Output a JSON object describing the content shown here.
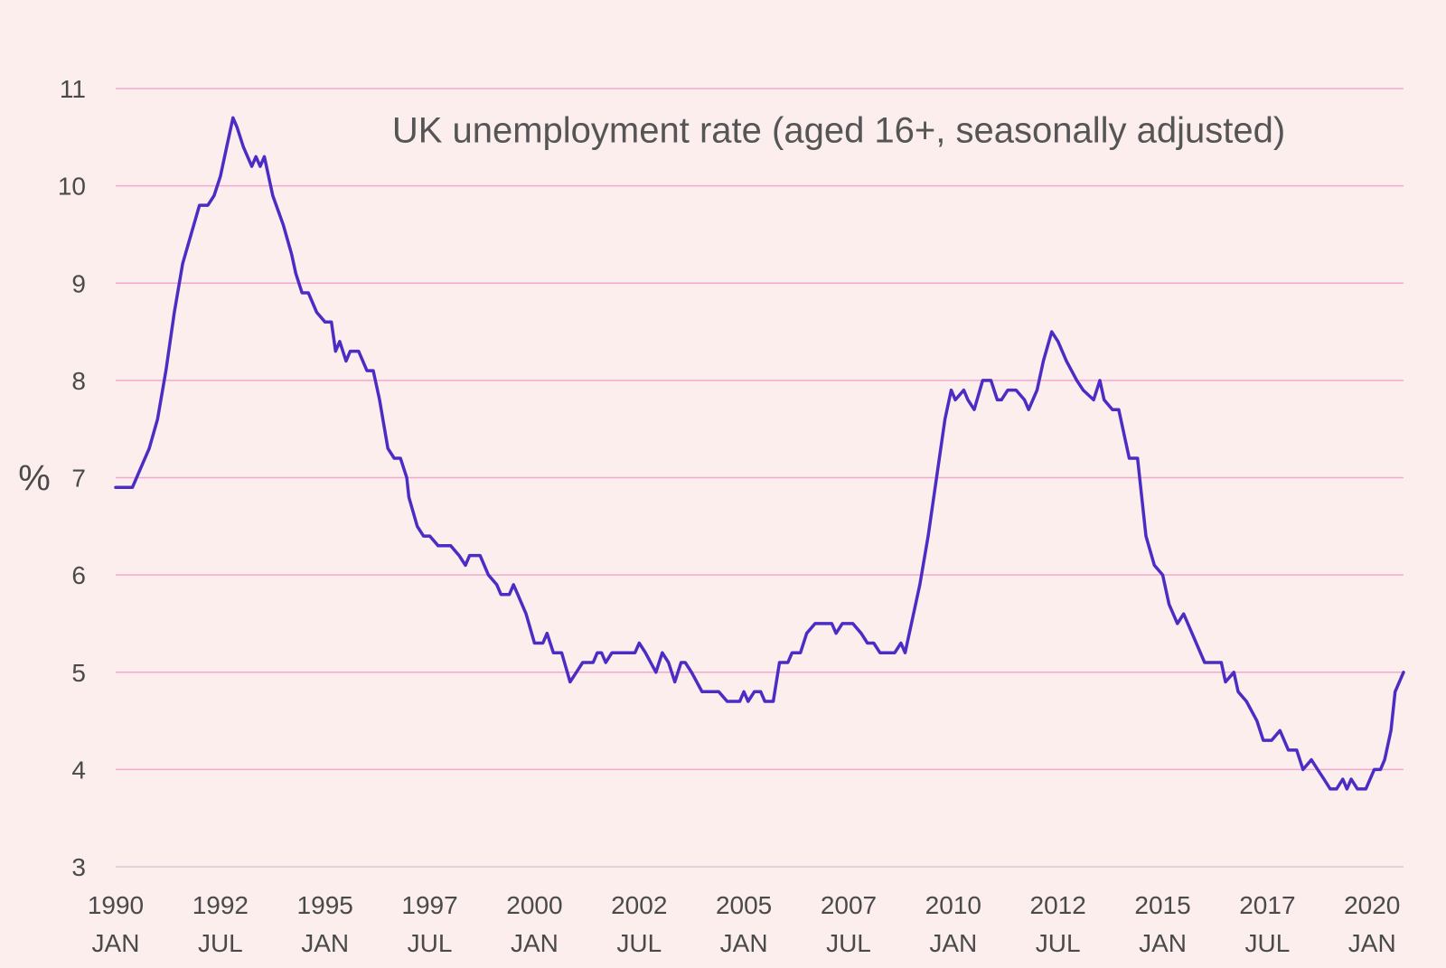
{
  "chart_data": {
    "type": "line",
    "title": "UK unemployment rate (aged 16+, seasonally adjusted)",
    "xlabel": "",
    "ylabel": "%",
    "ylim": [
      3,
      11
    ],
    "yticks": [
      "3",
      "4",
      "5",
      "6",
      "7",
      "8",
      "9",
      "10",
      "11"
    ],
    "grid": true,
    "legend": "none",
    "xlim": [
      1990.0,
      2020.75
    ],
    "xtick_labels": [
      {
        "year": "1990",
        "month": "JAN",
        "x": 1990.0
      },
      {
        "year": "1992",
        "month": "JUL",
        "x": 1992.5
      },
      {
        "year": "1995",
        "month": "JAN",
        "x": 1995.0
      },
      {
        "year": "1997",
        "month": "JUL",
        "x": 1997.5
      },
      {
        "year": "2000",
        "month": "JAN",
        "x": 2000.0
      },
      {
        "year": "2002",
        "month": "JUL",
        "x": 2002.5
      },
      {
        "year": "2005",
        "month": "JAN",
        "x": 2005.0
      },
      {
        "year": "2007",
        "month": "JUL",
        "x": 2007.5
      },
      {
        "year": "2010",
        "month": "JAN",
        "x": 2010.0
      },
      {
        "year": "2012",
        "month": "JUL",
        "x": 2012.5
      },
      {
        "year": "2015",
        "month": "JAN",
        "x": 2015.0
      },
      {
        "year": "2017",
        "month": "JUL",
        "x": 2017.5
      },
      {
        "year": "2020",
        "month": "JAN",
        "x": 2020.0
      }
    ],
    "series": [
      {
        "name": "UK unemployment rate",
        "color": "#4B2CC4",
        "points": [
          [
            1990.0,
            6.9
          ],
          [
            1990.4,
            6.9
          ],
          [
            1990.6,
            7.1
          ],
          [
            1990.8,
            7.3
          ],
          [
            1991.0,
            7.6
          ],
          [
            1991.2,
            8.1
          ],
          [
            1991.4,
            8.7
          ],
          [
            1991.6,
            9.2
          ],
          [
            1991.8,
            9.5
          ],
          [
            1992.0,
            9.8
          ],
          [
            1992.2,
            9.8
          ],
          [
            1992.35,
            9.9
          ],
          [
            1992.5,
            10.1
          ],
          [
            1992.65,
            10.4
          ],
          [
            1992.8,
            10.7
          ],
          [
            1992.9,
            10.6
          ],
          [
            1993.05,
            10.4
          ],
          [
            1993.25,
            10.2
          ],
          [
            1993.35,
            10.3
          ],
          [
            1993.45,
            10.2
          ],
          [
            1993.55,
            10.3
          ],
          [
            1993.75,
            9.9
          ],
          [
            1994.0,
            9.6
          ],
          [
            1994.2,
            9.3
          ],
          [
            1994.3,
            9.1
          ],
          [
            1994.45,
            8.9
          ],
          [
            1994.6,
            8.9
          ],
          [
            1994.8,
            8.7
          ],
          [
            1995.0,
            8.6
          ],
          [
            1995.15,
            8.6
          ],
          [
            1995.25,
            8.3
          ],
          [
            1995.35,
            8.4
          ],
          [
            1995.5,
            8.2
          ],
          [
            1995.6,
            8.3
          ],
          [
            1995.8,
            8.3
          ],
          [
            1996.0,
            8.1
          ],
          [
            1996.15,
            8.1
          ],
          [
            1996.3,
            7.8
          ],
          [
            1996.5,
            7.3
          ],
          [
            1996.65,
            7.2
          ],
          [
            1996.8,
            7.2
          ],
          [
            1996.95,
            7.0
          ],
          [
            1997.0,
            6.8
          ],
          [
            1997.2,
            6.5
          ],
          [
            1997.35,
            6.4
          ],
          [
            1997.5,
            6.4
          ],
          [
            1997.7,
            6.3
          ],
          [
            1998.0,
            6.3
          ],
          [
            1998.2,
            6.2
          ],
          [
            1998.35,
            6.1
          ],
          [
            1998.45,
            6.2
          ],
          [
            1998.7,
            6.2
          ],
          [
            1998.9,
            6.0
          ],
          [
            1999.1,
            5.9
          ],
          [
            1999.2,
            5.8
          ],
          [
            1999.4,
            5.8
          ],
          [
            1999.5,
            5.9
          ],
          [
            1999.6,
            5.8
          ],
          [
            1999.8,
            5.6
          ],
          [
            2000.0,
            5.3
          ],
          [
            2000.2,
            5.3
          ],
          [
            2000.3,
            5.4
          ],
          [
            2000.45,
            5.2
          ],
          [
            2000.65,
            5.2
          ],
          [
            2000.85,
            4.9
          ],
          [
            2001.0,
            5.0
          ],
          [
            2001.15,
            5.1
          ],
          [
            2001.4,
            5.1
          ],
          [
            2001.5,
            5.2
          ],
          [
            2001.6,
            5.2
          ],
          [
            2001.7,
            5.1
          ],
          [
            2001.85,
            5.2
          ],
          [
            2002.1,
            5.2
          ],
          [
            2002.4,
            5.2
          ],
          [
            2002.5,
            5.3
          ],
          [
            2002.65,
            5.2
          ],
          [
            2002.9,
            5.0
          ],
          [
            2003.05,
            5.2
          ],
          [
            2003.2,
            5.1
          ],
          [
            2003.35,
            4.9
          ],
          [
            2003.5,
            5.1
          ],
          [
            2003.6,
            5.1
          ],
          [
            2003.75,
            5.0
          ],
          [
            2004.0,
            4.8
          ],
          [
            2004.4,
            4.8
          ],
          [
            2004.6,
            4.7
          ],
          [
            2004.9,
            4.7
          ],
          [
            2005.0,
            4.8
          ],
          [
            2005.1,
            4.7
          ],
          [
            2005.25,
            4.8
          ],
          [
            2005.4,
            4.8
          ],
          [
            2005.5,
            4.7
          ],
          [
            2005.7,
            4.7
          ],
          [
            2005.85,
            5.1
          ],
          [
            2006.05,
            5.1
          ],
          [
            2006.15,
            5.2
          ],
          [
            2006.35,
            5.2
          ],
          [
            2006.5,
            5.4
          ],
          [
            2006.7,
            5.5
          ],
          [
            2006.9,
            5.5
          ],
          [
            2007.1,
            5.5
          ],
          [
            2007.2,
            5.4
          ],
          [
            2007.35,
            5.5
          ],
          [
            2007.6,
            5.5
          ],
          [
            2007.8,
            5.4
          ],
          [
            2007.95,
            5.3
          ],
          [
            2008.1,
            5.3
          ],
          [
            2008.25,
            5.2
          ],
          [
            2008.6,
            5.2
          ],
          [
            2008.75,
            5.3
          ],
          [
            2008.85,
            5.2
          ],
          [
            2009.0,
            5.5
          ],
          [
            2009.2,
            5.9
          ],
          [
            2009.4,
            6.4
          ],
          [
            2009.6,
            7.0
          ],
          [
            2009.8,
            7.6
          ],
          [
            2009.95,
            7.9
          ],
          [
            2010.05,
            7.8
          ],
          [
            2010.25,
            7.9
          ],
          [
            2010.35,
            7.8
          ],
          [
            2010.5,
            7.7
          ],
          [
            2010.7,
            8.0
          ],
          [
            2010.9,
            8.0
          ],
          [
            2011.05,
            7.8
          ],
          [
            2011.15,
            7.8
          ],
          [
            2011.3,
            7.9
          ],
          [
            2011.5,
            7.9
          ],
          [
            2011.7,
            7.8
          ],
          [
            2011.8,
            7.7
          ],
          [
            2012.0,
            7.9
          ],
          [
            2012.15,
            8.2
          ],
          [
            2012.35,
            8.5
          ],
          [
            2012.5,
            8.4
          ],
          [
            2012.7,
            8.2
          ],
          [
            2012.95,
            8.0
          ],
          [
            2013.1,
            7.9
          ],
          [
            2013.35,
            7.8
          ],
          [
            2013.5,
            8.0
          ],
          [
            2013.6,
            7.8
          ],
          [
            2013.8,
            7.7
          ],
          [
            2013.95,
            7.7
          ],
          [
            2014.2,
            7.2
          ],
          [
            2014.4,
            7.2
          ],
          [
            2014.6,
            6.4
          ],
          [
            2014.8,
            6.1
          ],
          [
            2015.0,
            6.0
          ],
          [
            2015.15,
            5.7
          ],
          [
            2015.35,
            5.5
          ],
          [
            2015.5,
            5.6
          ],
          [
            2015.7,
            5.4
          ],
          [
            2016.0,
            5.1
          ],
          [
            2016.4,
            5.1
          ],
          [
            2016.5,
            4.9
          ],
          [
            2016.7,
            5.0
          ],
          [
            2016.8,
            4.8
          ],
          [
            2017.0,
            4.7
          ],
          [
            2017.25,
            4.5
          ],
          [
            2017.4,
            4.3
          ],
          [
            2017.6,
            4.3
          ],
          [
            2017.8,
            4.4
          ],
          [
            2018.0,
            4.2
          ],
          [
            2018.2,
            4.2
          ],
          [
            2018.35,
            4.0
          ],
          [
            2018.55,
            4.1
          ],
          [
            2018.7,
            4.0
          ],
          [
            2018.85,
            3.9
          ],
          [
            2019.0,
            3.8
          ],
          [
            2019.15,
            3.8
          ],
          [
            2019.3,
            3.9
          ],
          [
            2019.4,
            3.8
          ],
          [
            2019.5,
            3.9
          ],
          [
            2019.65,
            3.8
          ],
          [
            2019.85,
            3.8
          ],
          [
            2020.05,
            4.0
          ],
          [
            2020.2,
            4.0
          ],
          [
            2020.3,
            4.1
          ],
          [
            2020.45,
            4.4
          ],
          [
            2020.55,
            4.8
          ],
          [
            2020.75,
            5.0
          ]
        ]
      }
    ]
  }
}
